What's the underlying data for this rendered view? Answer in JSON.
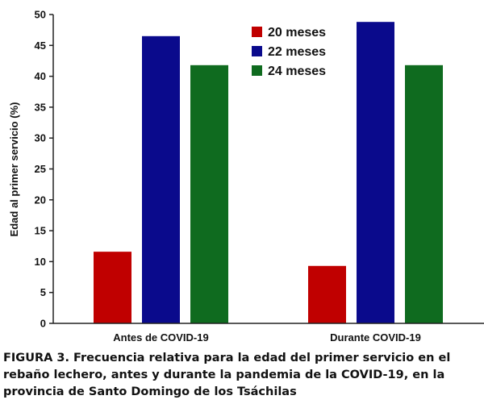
{
  "chart_data": {
    "type": "bar",
    "categories": [
      "Antes de COVID-19",
      "Durante COVID-19"
    ],
    "series": [
      {
        "name": "20 meses",
        "color": "#c00000",
        "values": [
          11.6,
          9.3
        ]
      },
      {
        "name": "22 meses",
        "color": "#0a0a8c",
        "values": [
          46.5,
          48.8
        ]
      },
      {
        "name": "24 meses",
        "color": "#0f6b1f",
        "values": [
          41.8,
          41.8
        ]
      }
    ],
    "ylabel": "Edad al primer servicio (%)",
    "xlabel": "",
    "ylim": [
      0,
      50
    ],
    "yticks": [
      0,
      5,
      10,
      15,
      20,
      25,
      30,
      35,
      40,
      45,
      50
    ],
    "legend_position": "top-right",
    "grid": false
  },
  "caption": "FIGURA 3. Frecuencia relativa para la edad del primer servicio en el rebaño lechero, antes y durante la pandemia de la COVID-19, en la provincia de Santo Domingo de los Tsáchilas"
}
